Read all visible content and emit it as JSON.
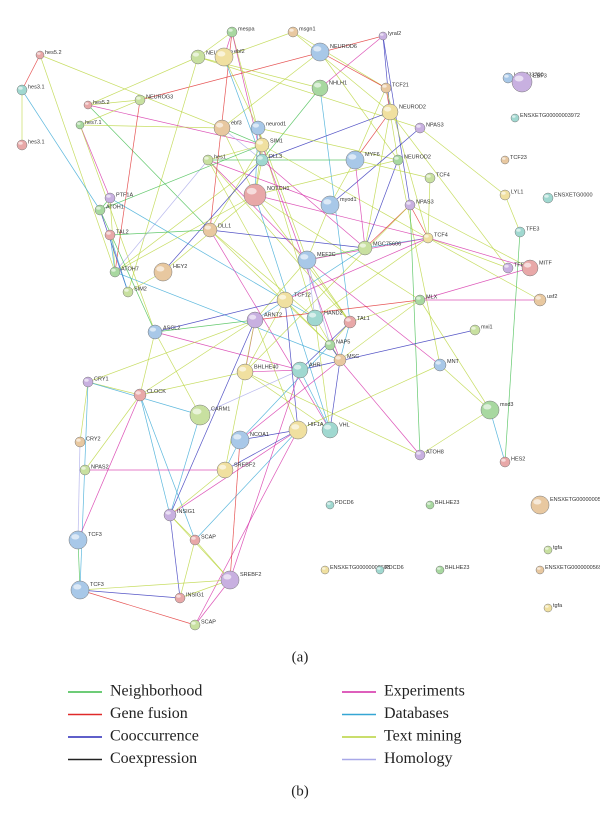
{
  "network": {
    "panel_label": "(a)",
    "nodes": [
      {
        "label": "mespa"
      },
      {
        "label": "msgn1"
      },
      {
        "label": "NEUROD6"
      },
      {
        "label": "lyral2"
      },
      {
        "label": "hes5.2"
      },
      {
        "label": "NEUROG2"
      },
      {
        "label": "ebf2"
      },
      {
        "label": "hes3.1"
      },
      {
        "label": "NHLH1"
      },
      {
        "label": "TCF21"
      },
      {
        "label": "LOC733700"
      },
      {
        "label": "EBF3"
      },
      {
        "label": "hes5.2"
      },
      {
        "label": "NEUROG3"
      },
      {
        "label": "NEUROD2"
      },
      {
        "label": "ENSXETG00000003972"
      },
      {
        "label": "hes7.1"
      },
      {
        "label": "ebf3"
      },
      {
        "label": "neurod1"
      },
      {
        "label": "NPAS3"
      },
      {
        "label": "hes3.1"
      },
      {
        "label": "hes1"
      },
      {
        "label": "SIM1"
      },
      {
        "label": "DLL3"
      },
      {
        "label": "NEUROD2"
      },
      {
        "label": "TCF23"
      },
      {
        "label": "MYF6"
      },
      {
        "label": "PTF1A"
      },
      {
        "label": "NOTCH1"
      },
      {
        "label": "TCF4"
      },
      {
        "label": "LYL1"
      },
      {
        "label": "ENSXETG0000"
      },
      {
        "label": "ATOH1"
      },
      {
        "label": "DLL1"
      },
      {
        "label": "myod1"
      },
      {
        "label": "NPAS3"
      },
      {
        "label": "TAL2"
      },
      {
        "label": "MGC75606"
      },
      {
        "label": "TCF4"
      },
      {
        "label": "TFE3"
      },
      {
        "label": "ATOH7"
      },
      {
        "label": "HEY2"
      },
      {
        "label": "MEF2C"
      },
      {
        "label": "TFEC"
      },
      {
        "label": "MITF"
      },
      {
        "label": "SIM2"
      },
      {
        "label": "TCF12"
      },
      {
        "label": "HAND2"
      },
      {
        "label": "MLX"
      },
      {
        "label": "usf2"
      },
      {
        "label": "ASCL2"
      },
      {
        "label": "ARNT2"
      },
      {
        "label": "TAL1"
      },
      {
        "label": "mxi1"
      },
      {
        "label": "BHLHE40"
      },
      {
        "label": "AHR"
      },
      {
        "label": "NAP5"
      },
      {
        "label": "MSC"
      },
      {
        "label": "MNT"
      },
      {
        "label": "CRY1"
      },
      {
        "label": "CLOCK"
      },
      {
        "label": "CARM1"
      },
      {
        "label": "HIF1A"
      },
      {
        "label": "VHL"
      },
      {
        "label": "mxd3"
      },
      {
        "label": "CRY2"
      },
      {
        "label": "NCOA1"
      },
      {
        "label": "ATOH8"
      },
      {
        "label": "HES2"
      },
      {
        "label": "NPAS2"
      },
      {
        "label": "SREBF2"
      },
      {
        "label": "PDCD6"
      },
      {
        "label": "BHLHE23"
      },
      {
        "label": "ENSXETG00000005692"
      },
      {
        "label": "TCF3"
      },
      {
        "label": "INSIG1"
      },
      {
        "label": "SCAP"
      },
      {
        "label": "tgfa"
      },
      {
        "label": "ENSXETG00000008603"
      },
      {
        "label": "PDCD6"
      },
      {
        "label": "BHLHE23"
      },
      {
        "label": "ENSXETG00000005692"
      },
      {
        "label": "TCF3"
      },
      {
        "label": "SREBF2"
      },
      {
        "label": "INSIG1"
      },
      {
        "label": "SCAP"
      },
      {
        "label": "tgfa"
      }
    ]
  },
  "legend": {
    "panel_label": "(b)",
    "items": [
      {
        "name": "Neighborhood",
        "color": "#3dbb4a"
      },
      {
        "name": "Gene fusion",
        "color": "#e02a2a"
      },
      {
        "name": "Cooccurrence",
        "color": "#2a2ab8"
      },
      {
        "name": "Coexpression",
        "color": "#222222"
      },
      {
        "name": "Experiments",
        "color": "#d42aa6"
      },
      {
        "name": "Databases",
        "color": "#35a6d4"
      },
      {
        "name": "Text mining",
        "color": "#b9d43c"
      },
      {
        "name": "Homology",
        "color": "#a8a8e8"
      }
    ]
  }
}
